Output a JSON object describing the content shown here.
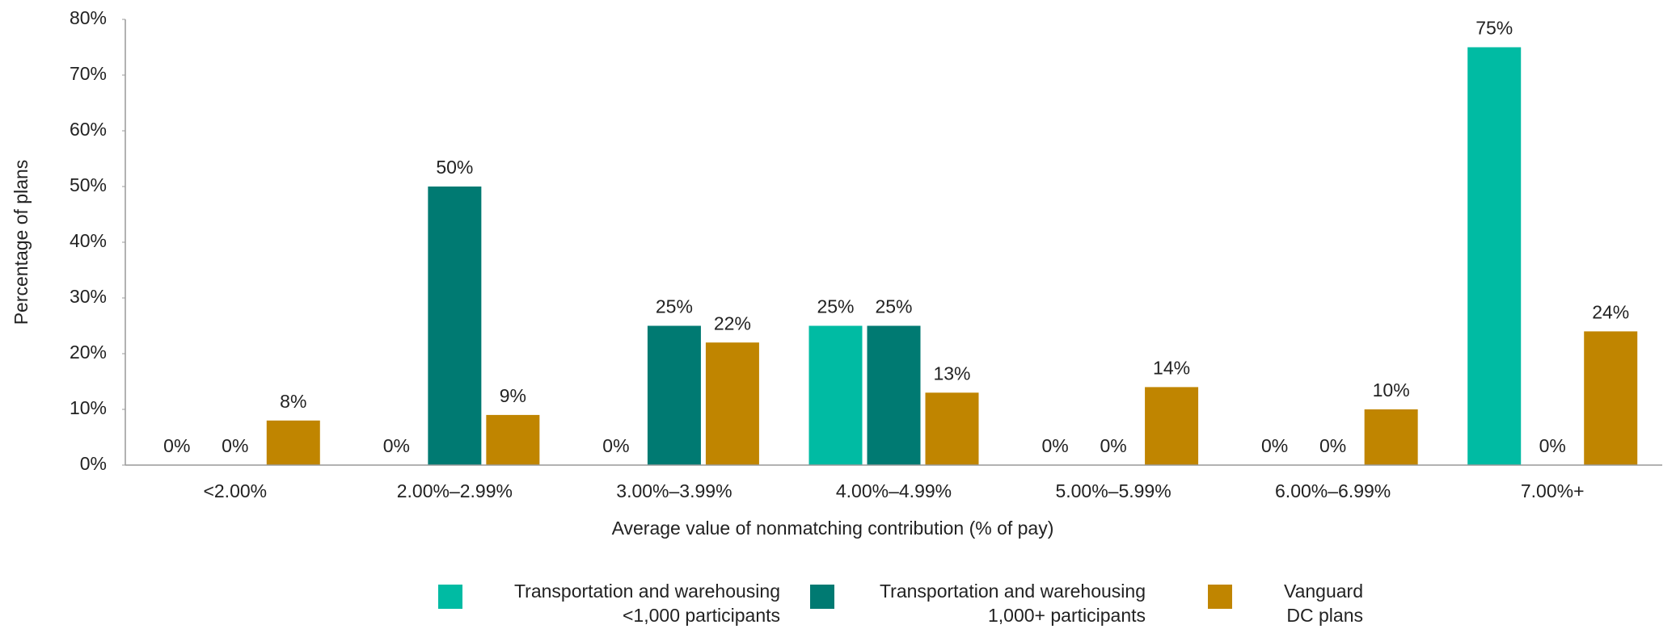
{
  "chart_data": {
    "type": "bar",
    "x_label": "Average value of nonmatching contribution (% of pay)",
    "y_label": "Percentage of plans",
    "categories": [
      "<2.00%",
      "2.00%–2.99%",
      "3.00%–3.99%",
      "4.00%–4.99%",
      "5.00%–5.99%",
      "6.00%–6.99%",
      "7.00%+"
    ],
    "series": [
      {
        "name": "Transportation and warehousing\n<1,000 participants",
        "color": "#00bba3",
        "values": [
          0,
          0,
          0,
          25,
          0,
          0,
          75
        ],
        "value_labels": [
          "0%",
          "0%",
          "0%",
          "25%",
          "0%",
          "0%",
          "75%"
        ]
      },
      {
        "name": "Transportation and warehousing\n1,000+ participants",
        "color": "#007a72",
        "values": [
          0,
          50,
          25,
          25,
          0,
          0,
          0
        ],
        "value_labels": [
          "0%",
          "50%",
          "25%",
          "25%",
          "0%",
          "0%",
          "0%"
        ]
      },
      {
        "name": "Vanguard\nDC plans",
        "color": "#c08500",
        "values": [
          8,
          9,
          22,
          13,
          14,
          10,
          24
        ],
        "value_labels": [
          "8%",
          "9%",
          "22%",
          "13%",
          "14%",
          "10%",
          "24%"
        ]
      }
    ],
    "ylim": [
      0,
      80
    ],
    "yticks": [
      {
        "value": 0,
        "label": "0%"
      },
      {
        "value": 10,
        "label": "10%"
      },
      {
        "value": 20,
        "label": "20%"
      },
      {
        "value": 30,
        "label": "30%"
      },
      {
        "value": 40,
        "label": "40%"
      },
      {
        "value": 50,
        "label": "50%"
      },
      {
        "value": 60,
        "label": "60%"
      },
      {
        "value": 70,
        "label": "70%"
      },
      {
        "value": 80,
        "label": "80%"
      }
    ],
    "legend": "bottom"
  }
}
